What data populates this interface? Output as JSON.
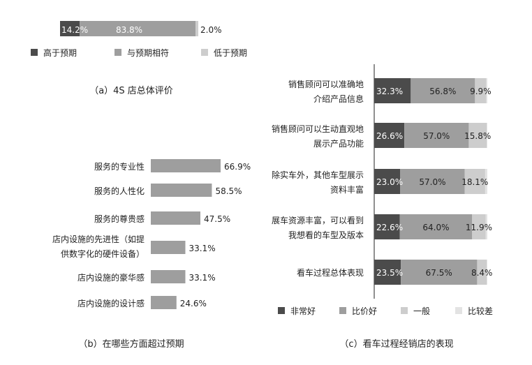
{
  "colors": {
    "very_dark": "#4b4b4b",
    "mid_gray": "#9e9e9e",
    "light_gray": "#cdcdcd",
    "lightest_gray": "#e3e3e3"
  },
  "chart_data": [
    {
      "type": "bar",
      "stacked": true,
      "orientation": "horizontal",
      "title": "（a）4S 店总体评价",
      "categories": [
        ""
      ],
      "series": [
        {
          "name": "高于预期",
          "values": [
            14.2
          ],
          "labels": [
            "14.2%"
          ]
        },
        {
          "name": "与预期相符",
          "values": [
            83.8
          ],
          "labels": [
            "83.8%"
          ]
        },
        {
          "name": "低于预期",
          "values": [
            2.0
          ],
          "labels": [
            "2.0%"
          ]
        }
      ],
      "legend": "bottom"
    },
    {
      "type": "bar",
      "orientation": "horizontal",
      "title": "（b）在哪些方面超过预期",
      "categories": [
        [
          "服务的专业性"
        ],
        [
          "服务的人性化"
        ],
        [
          "服务的尊贵感"
        ],
        [
          "店内设施的先进性（如提",
          "供数字化的硬件设备）"
        ],
        [
          "店内设施的豪华感"
        ],
        [
          "店内设施的设计感"
        ]
      ],
      "values": [
        66.9,
        58.5,
        47.5,
        33.1,
        33.1,
        24.6
      ],
      "labels": [
        "66.9%",
        "58.5%",
        "47.5%",
        "33.1%",
        "33.1%",
        "24.6%"
      ]
    },
    {
      "type": "bar",
      "stacked": true,
      "orientation": "horizontal",
      "title": "（c）看车过程经销店的表现",
      "categories": [
        [
          "销售顾问可以准确地",
          "介绍产品信息"
        ],
        [
          "销售顾问可以生动直观地",
          "展示产品功能"
        ],
        [
          "除实车外，其他车型展示",
          "资料丰富"
        ],
        [
          "展车资源丰富，可以看到",
          "我想看的车型及版本"
        ],
        [
          "看车过程总体表现"
        ]
      ],
      "series": [
        {
          "name": "非常好",
          "values": [
            32.3,
            26.6,
            23.0,
            22.6,
            23.5
          ],
          "labels": [
            "32.3%",
            "26.6%",
            "23.0%",
            "22.6%",
            "23.5%"
          ]
        },
        {
          "name": "比价好",
          "values": [
            56.8,
            57.0,
            57.0,
            64.0,
            67.5
          ],
          "labels": [
            "56.8%",
            "57.0%",
            "57.0%",
            "64.0%",
            "67.5%"
          ]
        },
        {
          "name": "一般",
          "values": [
            9.9,
            15.8,
            18.1,
            11.9,
            8.4
          ],
          "labels": [
            "9.9%",
            "15.8%",
            "18.1%",
            "11.9%",
            "8.4%"
          ]
        },
        {
          "name": "比较差",
          "values": [
            1.0,
            0.6,
            1.9,
            1.5,
            0.6
          ],
          "labels": []
        }
      ],
      "legend": "bottom"
    }
  ]
}
